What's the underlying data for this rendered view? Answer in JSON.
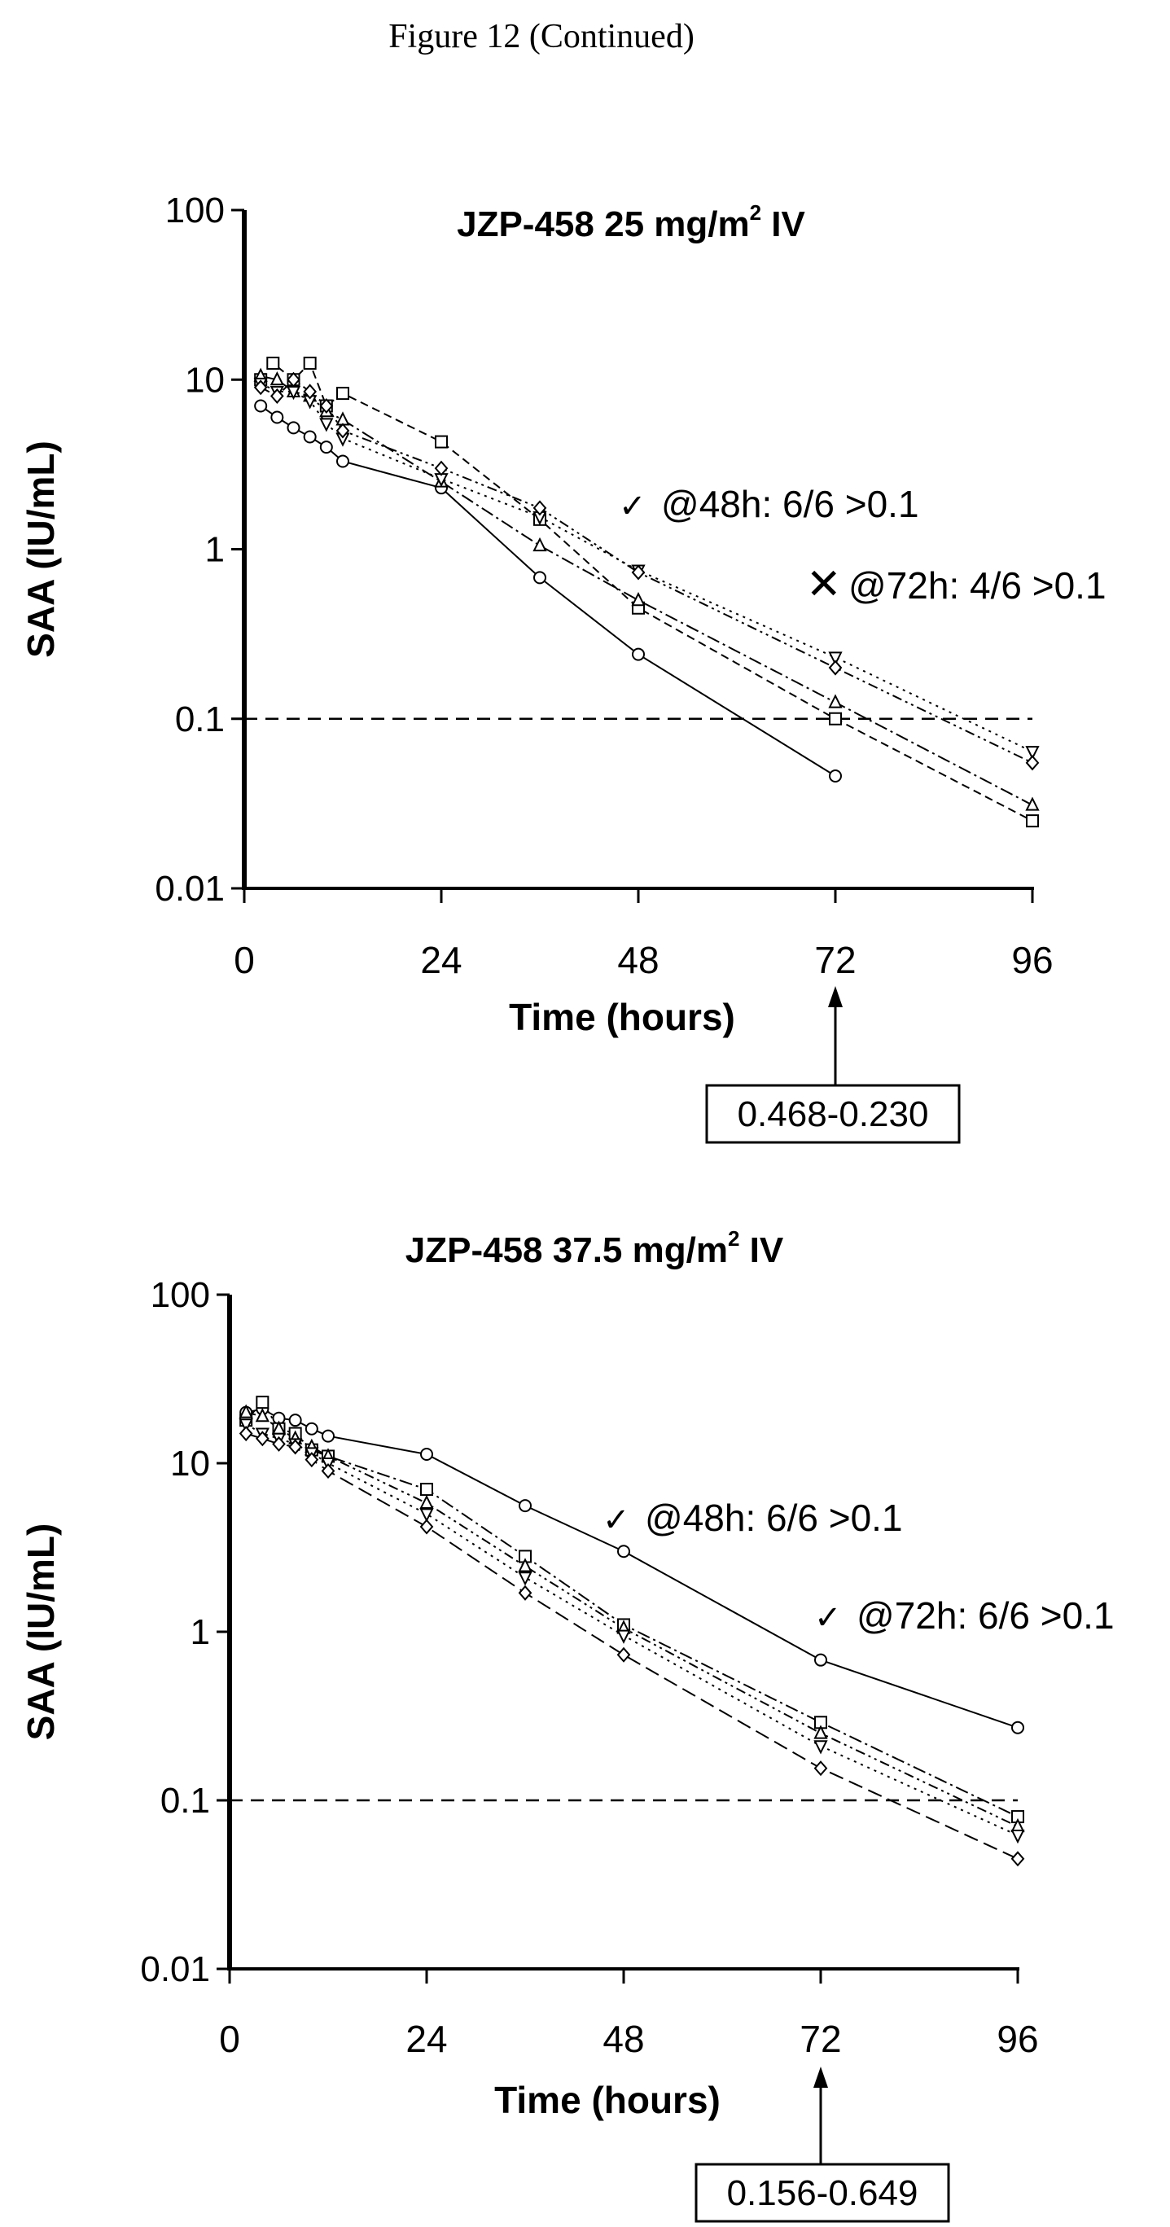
{
  "page": {
    "heading": "Figure 12 (Continued)"
  },
  "colors": {
    "ink": "#000000",
    "background": "#ffffff"
  },
  "chart_data": [
    {
      "type": "line",
      "title_main": "JZP-458 25 mg/m",
      "title_sup": "2",
      "title_tail": " IV",
      "xlabel": "Time (hours)",
      "ylabel": "SAA (IU/mL)",
      "y_scale": "log",
      "ylim": [
        0.01,
        100
      ],
      "xlim": [
        0,
        96
      ],
      "x_ticks": [
        "0",
        "24",
        "48",
        "72",
        "96"
      ],
      "y_ticks": [
        "0.01",
        "0.1",
        "1",
        "10",
        "100"
      ],
      "threshold": 0.1,
      "annotations": [
        {
          "mark": "✓",
          "text": "@48h: 6/6 >0.1"
        },
        {
          "mark": "✕",
          "text": "@72h: 4/6 >0.1"
        }
      ],
      "arrow_x": 72,
      "callout": "0.468-0.230",
      "series": [
        {
          "marker": "circle",
          "dash": "none",
          "points": [
            [
              2,
              7
            ],
            [
              4,
              6
            ],
            [
              6,
              5.2
            ],
            [
              8,
              4.6
            ],
            [
              10,
              4
            ],
            [
              12,
              3.3
            ],
            [
              24,
              2.3
            ],
            [
              36,
              0.68
            ],
            [
              48,
              0.24
            ],
            [
              72,
              0.046
            ]
          ]
        },
        {
          "marker": "square",
          "dash": "10,6",
          "points": [
            [
              2,
              10
            ],
            [
              3.5,
              12.5
            ],
            [
              6,
              10
            ],
            [
              8,
              12.5
            ],
            [
              10,
              7
            ],
            [
              12,
              8.3
            ],
            [
              24,
              4.3
            ],
            [
              36,
              1.5
            ],
            [
              48,
              0.45
            ],
            [
              72,
              0.1
            ],
            [
              96,
              0.025
            ]
          ]
        },
        {
          "marker": "triangle",
          "dash": "16,5,3,5",
          "points": [
            [
              2,
              10.5
            ],
            [
              4,
              10
            ],
            [
              6,
              8.5
            ],
            [
              8,
              8
            ],
            [
              10,
              6.5
            ],
            [
              12,
              5.8
            ],
            [
              24,
              2.5
            ],
            [
              36,
              1.05
            ],
            [
              48,
              0.5
            ],
            [
              72,
              0.125
            ],
            [
              96,
              0.031
            ]
          ]
        },
        {
          "marker": "triangle-down",
          "dash": "3,6",
          "points": [
            [
              2,
              9.5
            ],
            [
              4,
              8.5
            ],
            [
              6,
              8.5
            ],
            [
              8,
              7.5
            ],
            [
              10,
              5.5
            ],
            [
              12,
              4.5
            ],
            [
              24,
              2.6
            ],
            [
              36,
              1.55
            ],
            [
              48,
              0.75
            ],
            [
              72,
              0.23
            ],
            [
              96,
              0.064
            ]
          ]
        },
        {
          "marker": "diamond",
          "dash": "12,5,3,5,3,5",
          "points": [
            [
              2,
              9
            ],
            [
              4,
              8
            ],
            [
              6,
              10
            ],
            [
              8,
              8.5
            ],
            [
              10,
              7
            ],
            [
              12,
              5
            ],
            [
              24,
              3
            ],
            [
              36,
              1.75
            ],
            [
              48,
              0.73
            ],
            [
              72,
              0.2
            ],
            [
              96,
              0.055
            ]
          ]
        }
      ]
    },
    {
      "type": "line",
      "title_main": "JZP-458 37.5 mg/m",
      "title_sup": "2",
      "title_tail": " IV",
      "xlabel": "Time (hours)",
      "ylabel": "SAA (IU/mL)",
      "y_scale": "log",
      "ylim": [
        0.01,
        100
      ],
      "xlim": [
        0,
        96
      ],
      "x_ticks": [
        "0",
        "24",
        "48",
        "72",
        "96"
      ],
      "y_ticks": [
        "0.01",
        "0.1",
        "1",
        "10",
        "100"
      ],
      "threshold": 0.1,
      "annotations": [
        {
          "mark": "✓",
          "text": "@48h: 6/6 >0.1"
        },
        {
          "mark": "✓",
          "text": "@72h: 6/6 >0.1"
        }
      ],
      "arrow_x": 72,
      "callout": "0.156-0.649",
      "series": [
        {
          "marker": "circle",
          "dash": "none",
          "points": [
            [
              2,
              20
            ],
            [
              4,
              21
            ],
            [
              6,
              18.5
            ],
            [
              8,
              18
            ],
            [
              10,
              16
            ],
            [
              12,
              14.5
            ],
            [
              24,
              11.3
            ],
            [
              36,
              5.6
            ],
            [
              48,
              3
            ],
            [
              72,
              0.68
            ],
            [
              96,
              0.27
            ]
          ]
        },
        {
          "marker": "square",
          "dash": "16,5,3,5",
          "points": [
            [
              2,
              18
            ],
            [
              4,
              23
            ],
            [
              6,
              16
            ],
            [
              8,
              15
            ],
            [
              10,
              12
            ],
            [
              12,
              11
            ],
            [
              24,
              7
            ],
            [
              36,
              2.8
            ],
            [
              48,
              1.1
            ],
            [
              72,
              0.29
            ],
            [
              96,
              0.08
            ]
          ]
        },
        {
          "marker": "triangle",
          "dash": "12,5,3,5,3,5",
          "points": [
            [
              2,
              20
            ],
            [
              4,
              19
            ],
            [
              6,
              16
            ],
            [
              8,
              14
            ],
            [
              10,
              12.5
            ],
            [
              12,
              11
            ],
            [
              24,
              5.8
            ],
            [
              36,
              2.45
            ],
            [
              48,
              1.05
            ],
            [
              72,
              0.25
            ],
            [
              96,
              0.07
            ]
          ]
        },
        {
          "marker": "triangle-down",
          "dash": "3,6",
          "points": [
            [
              2,
              17
            ],
            [
              4,
              15
            ],
            [
              6,
              14
            ],
            [
              8,
              13
            ],
            [
              10,
              11.5
            ],
            [
              12,
              10
            ],
            [
              24,
              5
            ],
            [
              36,
              2.1
            ],
            [
              48,
              0.95
            ],
            [
              72,
              0.21
            ],
            [
              96,
              0.062
            ]
          ]
        },
        {
          "marker": "diamond",
          "dash": "18,8",
          "points": [
            [
              2,
              15
            ],
            [
              4,
              14
            ],
            [
              6,
              13
            ],
            [
              8,
              12.5
            ],
            [
              10,
              10.5
            ],
            [
              12,
              9
            ],
            [
              24,
              4.2
            ],
            [
              36,
              1.7
            ],
            [
              48,
              0.73
            ],
            [
              72,
              0.155
            ],
            [
              96,
              0.045
            ]
          ]
        }
      ]
    }
  ]
}
